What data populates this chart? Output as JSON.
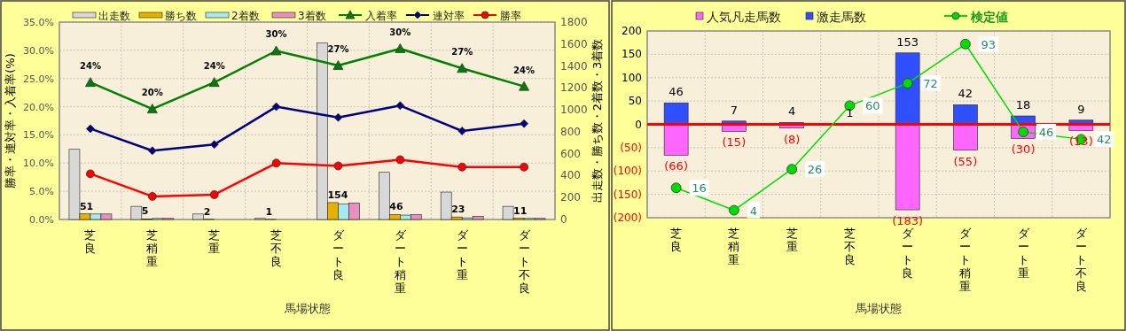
{
  "chart_data": [
    {
      "type": "bar",
      "categories": [
        "芝良",
        "芝稍重",
        "芝重",
        "芝不良",
        "ダート良",
        "ダート稍重",
        "ダート重",
        "ダート不良"
      ],
      "xlabel": "馬場状態",
      "ylabel": "勝率・連対率・入着率(%)",
      "y2label": "出走数・勝ち数・2着数・3着数",
      "ylim": [
        0,
        35
      ],
      "yticks": [
        {
          "value": 0,
          "label": "0.0%"
        },
        {
          "value": 5,
          "label": "5.0%"
        },
        {
          "value": 10,
          "label": "10.0%"
        },
        {
          "value": 15,
          "label": "15.0%"
        },
        {
          "value": 20,
          "label": "20.0%"
        },
        {
          "value": 25,
          "label": "25.0%"
        },
        {
          "value": 30,
          "label": "30.0%"
        },
        {
          "value": 35,
          "label": "35.0%"
        }
      ],
      "y2lim": [
        0,
        1800
      ],
      "y2ticks": [
        0,
        200,
        400,
        600,
        800,
        1000,
        1200,
        1400,
        1600,
        1800
      ],
      "grid": true,
      "legend": "top",
      "series": [
        {
          "name": "出走数",
          "color": "#d8d8d8",
          "axis": "y2",
          "values": [
            640,
            120,
            50,
            10,
            1610,
            430,
            250,
            120
          ]
        },
        {
          "name": "勝ち数",
          "color": "#e8b000",
          "axis": "y2",
          "values": [
            51,
            5,
            2,
            1,
            154,
            46,
            23,
            11
          ],
          "value_labels": [
            "51",
            "5",
            "2",
            "1",
            "154",
            "46",
            "23",
            "11"
          ]
        },
        {
          "name": "2着数",
          "color": "#a8e8f0",
          "axis": "y2",
          "values": [
            50,
            10,
            null,
            0,
            140,
            40,
            15,
            10
          ]
        },
        {
          "name": "3着数",
          "color": "#e890c0",
          "axis": "y2",
          "values": [
            50,
            10,
            null,
            0,
            150,
            45,
            30,
            10
          ]
        },
        {
          "name": "入着率",
          "type": "line",
          "color": "#008000",
          "marker": "triangle",
          "values": [
            24.3,
            19.6,
            24.3,
            29.9,
            27.3,
            30.3,
            26.8,
            23.6
          ],
          "value_labels": [
            "24%",
            "20%",
            "24%",
            "30%",
            "27%",
            "30%",
            "27%",
            "24%"
          ]
        },
        {
          "name": "連対率",
          "type": "line",
          "color": "#000080",
          "marker": "diamond",
          "values": [
            16.1,
            12.2,
            13.3,
            20.0,
            18.1,
            20.2,
            15.7,
            17.0
          ]
        },
        {
          "name": "勝率",
          "type": "line",
          "color": "#ff0000",
          "marker": "circle",
          "values": [
            8.1,
            4.1,
            4.4,
            10.0,
            9.5,
            10.6,
            9.3,
            9.3
          ]
        }
      ]
    },
    {
      "type": "bar",
      "categories": [
        "芝良",
        "芝稍重",
        "芝重",
        "芝不良",
        "ダート良",
        "ダート稍重",
        "ダート重",
        "ダート不良"
      ],
      "xlabel": "馬場状態",
      "ylim": [
        -200,
        200
      ],
      "yticks": [
        {
          "value": -200,
          "label": "(200)"
        },
        {
          "value": -150,
          "label": "(150)"
        },
        {
          "value": -100,
          "label": "(100)"
        },
        {
          "value": -50,
          "label": "(50)"
        },
        0,
        50,
        100,
        150,
        200
      ],
      "y2lim": [
        0,
        100
      ],
      "stacked": true,
      "grid": true,
      "legend": "top",
      "ref_lines": [
        {
          "axis": "y",
          "value": 0,
          "color": "#ff0000"
        }
      ],
      "series": [
        {
          "name": "人気凡走馬数",
          "color": "#ff66ff",
          "values": [
            -66,
            -15,
            -8,
            null,
            -183,
            -55,
            -30,
            -13
          ],
          "value_labels": [
            "(66)",
            "(15)",
            "(8)",
            null,
            "(183)",
            "(55)",
            "(30)",
            "(13)"
          ]
        },
        {
          "name": "激走馬数",
          "color": "#3050ff",
          "values": [
            46,
            7,
            4,
            1,
            153,
            42,
            18,
            9
          ],
          "value_labels": [
            "46",
            "7",
            "4",
            "1",
            "153",
            "42",
            "18",
            "9"
          ]
        },
        {
          "name": "検定値",
          "type": "line",
          "color": "#00dd00",
          "marker": "circle",
          "axis": "y2",
          "values": [
            16,
            4,
            26,
            60,
            72,
            93,
            46,
            42
          ],
          "value_labels": [
            "16",
            "4",
            "26",
            "60",
            "72",
            "93",
            "46",
            "42"
          ]
        }
      ]
    }
  ]
}
